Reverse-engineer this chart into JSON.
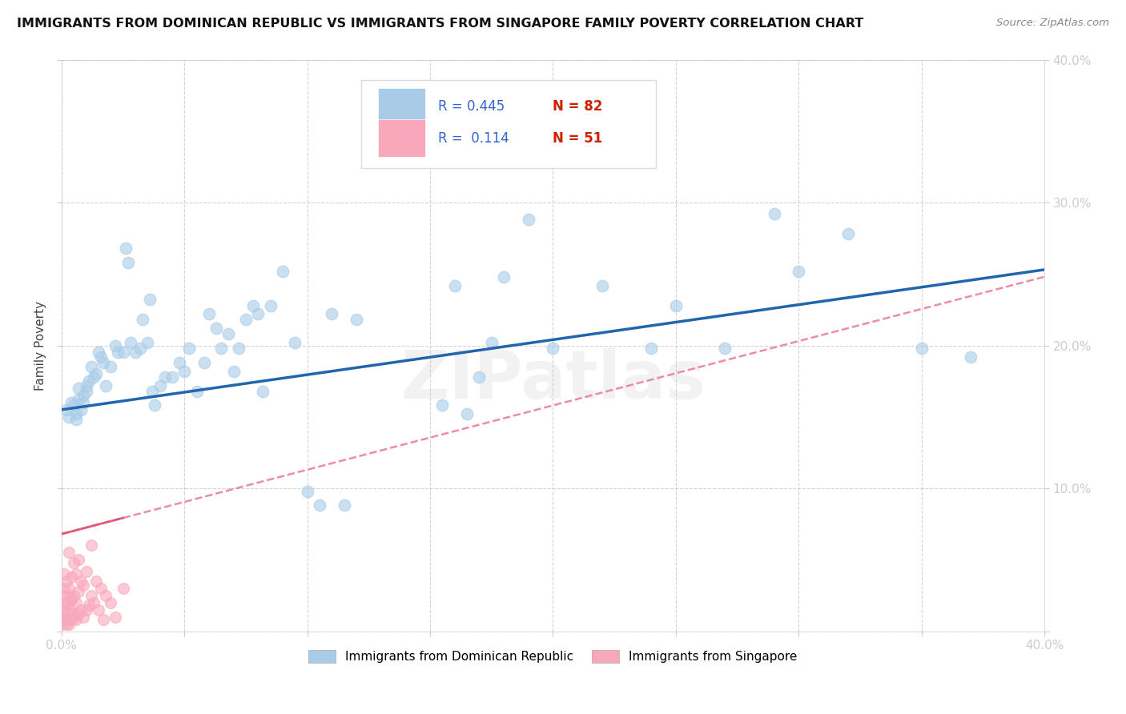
{
  "title": "IMMIGRANTS FROM DOMINICAN REPUBLIC VS IMMIGRANTS FROM SINGAPORE FAMILY POVERTY CORRELATION CHART",
  "source": "Source: ZipAtlas.com",
  "ylabel": "Family Poverty",
  "xlim": [
    0.0,
    0.4
  ],
  "ylim": [
    0.0,
    0.4
  ],
  "legend_labels": [
    "Immigrants from Dominican Republic",
    "Immigrants from Singapore"
  ],
  "dr_color": "#a8cce8",
  "sg_color": "#f9a8bc",
  "dr_line_color": "#2166ac",
  "sg_line_color": "#e87090",
  "dr_R": "0.445",
  "dr_N": "82",
  "sg_R": "0.114",
  "sg_N": "51",
  "watermark": "ZIPatlas",
  "dr_intercept": 0.155,
  "dr_slope": 0.245,
  "sg_intercept": 0.068,
  "sg_slope": 0.45,
  "dr_x": [
    0.002,
    0.003,
    0.004,
    0.005,
    0.006,
    0.006,
    0.007,
    0.007,
    0.008,
    0.009,
    0.009,
    0.01,
    0.01,
    0.011,
    0.012,
    0.013,
    0.014,
    0.015,
    0.016,
    0.017,
    0.018,
    0.02,
    0.022,
    0.023,
    0.025,
    0.026,
    0.027,
    0.028,
    0.03,
    0.032,
    0.033,
    0.035,
    0.036,
    0.037,
    0.04,
    0.042,
    0.045,
    0.048,
    0.05,
    0.052,
    0.055,
    0.058,
    0.06,
    0.063,
    0.065,
    0.068,
    0.07,
    0.072,
    0.075,
    0.078,
    0.08,
    0.085,
    0.09,
    0.095,
    0.1,
    0.105,
    0.11,
    0.115,
    0.12,
    0.125,
    0.13,
    0.14,
    0.15,
    0.155,
    0.16,
    0.165,
    0.17,
    0.175,
    0.18,
    0.19,
    0.2,
    0.22,
    0.24,
    0.25,
    0.27,
    0.29,
    0.3,
    0.32,
    0.35,
    0.37,
    0.038,
    0.082
  ],
  "dr_y": [
    0.155,
    0.15,
    0.16,
    0.158,
    0.152,
    0.148,
    0.162,
    0.17,
    0.155,
    0.16,
    0.165,
    0.168,
    0.172,
    0.175,
    0.185,
    0.178,
    0.18,
    0.195,
    0.192,
    0.188,
    0.172,
    0.185,
    0.2,
    0.195,
    0.195,
    0.268,
    0.258,
    0.202,
    0.195,
    0.198,
    0.218,
    0.202,
    0.232,
    0.168,
    0.172,
    0.178,
    0.178,
    0.188,
    0.182,
    0.198,
    0.168,
    0.188,
    0.222,
    0.212,
    0.198,
    0.208,
    0.182,
    0.198,
    0.218,
    0.228,
    0.222,
    0.228,
    0.252,
    0.202,
    0.098,
    0.088,
    0.222,
    0.088,
    0.218,
    0.332,
    0.348,
    0.348,
    0.332,
    0.158,
    0.242,
    0.152,
    0.178,
    0.202,
    0.248,
    0.288,
    0.198,
    0.242,
    0.198,
    0.228,
    0.198,
    0.292,
    0.252,
    0.278,
    0.198,
    0.192,
    0.158,
    0.168
  ],
  "sg_x": [
    0.0,
    0.001,
    0.001,
    0.001,
    0.002,
    0.002,
    0.002,
    0.003,
    0.003,
    0.003,
    0.003,
    0.004,
    0.004,
    0.004,
    0.005,
    0.005,
    0.005,
    0.006,
    0.006,
    0.006,
    0.007,
    0.007,
    0.007,
    0.008,
    0.008,
    0.009,
    0.009,
    0.01,
    0.01,
    0.011,
    0.012,
    0.012,
    0.013,
    0.014,
    0.015,
    0.016,
    0.017,
    0.018,
    0.02,
    0.022,
    0.025,
    0.0,
    0.001,
    0.001,
    0.002,
    0.002,
    0.003,
    0.003,
    0.004,
    0.004,
    0.005
  ],
  "sg_y": [
    0.01,
    0.015,
    0.025,
    0.04,
    0.012,
    0.02,
    0.035,
    0.008,
    0.018,
    0.03,
    0.055,
    0.012,
    0.022,
    0.038,
    0.01,
    0.025,
    0.048,
    0.008,
    0.02,
    0.04,
    0.012,
    0.028,
    0.05,
    0.015,
    0.035,
    0.01,
    0.032,
    0.015,
    0.042,
    0.018,
    0.025,
    0.06,
    0.02,
    0.035,
    0.015,
    0.03,
    0.008,
    0.025,
    0.02,
    0.01,
    0.03,
    0.005,
    0.008,
    0.03,
    0.005,
    0.018,
    0.005,
    0.025,
    0.008,
    0.022,
    0.012
  ]
}
